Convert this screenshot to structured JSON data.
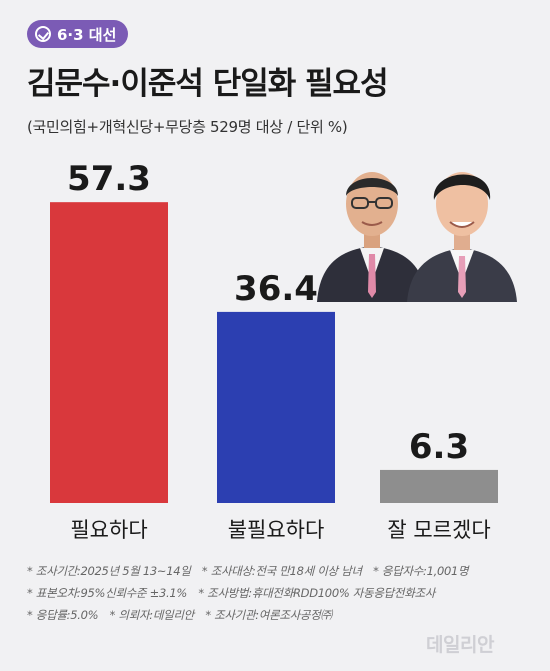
{
  "badge": {
    "icon": "vote-check-icon",
    "label": "6·3 대선"
  },
  "title": "김문수·이준석 단일화 필요성",
  "subtitle": "(국민의힘+개혁신당+무당층 529명 대상 / 단위 %)",
  "colors": {
    "accent": "#7b5bb5",
    "bar_need": "#d9383c",
    "bar_noneed": "#2c3fb1",
    "bar_unknown": "#8e8e8e"
  },
  "chart_data": {
    "type": "bar",
    "categories": [
      "필요하다",
      "불필요하다",
      "잘 모르겠다"
    ],
    "values": [
      57.3,
      36.4,
      6.3
    ],
    "value_labels": [
      "57.3",
      "36.4",
      "6.3"
    ],
    "colors": [
      "#d9383c",
      "#2c3fb1",
      "#8e8e8e"
    ],
    "title": "김문수·이준석 단일화 필요성",
    "unit": "%",
    "grid": false
  },
  "footnotes": [
    [
      "* 조사기간:2025년 5월 13~14일",
      "* 조사대상:전국 만18세 이상 남녀",
      "* 응답자수:1,001명"
    ],
    [
      "* 표본오차:95%신뢰수준 ±3.1%",
      "* 조사방법:휴대전화RDD100% 자동응답전화조사"
    ],
    [
      "* 응답률:5.0%",
      "* 의뢰자:데일리안",
      "* 조사기관:여론조사공정㈜"
    ]
  ],
  "logo": "데일리안"
}
